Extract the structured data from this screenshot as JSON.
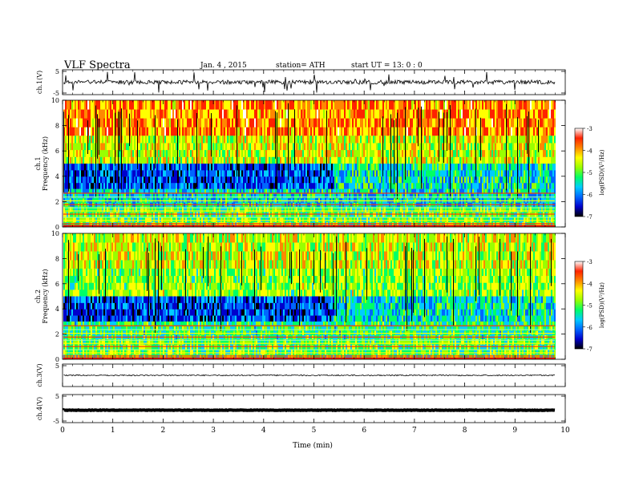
{
  "header": {
    "title": "VLF  Spectra",
    "date": "Jan. 4  , 2015",
    "station": "station= ATH",
    "start_ut": "start  UT  =   13: 0  : 0"
  },
  "colors": {
    "background": "#ffffff",
    "axis": "#000000",
    "colormap": [
      "#000000",
      "#0000cc",
      "#0066ff",
      "#00ccff",
      "#00ff66",
      "#99ff00",
      "#ffff00",
      "#ff8800",
      "#ff2200",
      "#ffffff"
    ]
  },
  "chart_data": [
    {
      "type": "line",
      "id": "ch1",
      "ylabel": "ch.1(V)",
      "ylim": [
        -5,
        5
      ],
      "yticks": [
        "5",
        "-5"
      ],
      "xlim": [
        0,
        10
      ],
      "description_values": {
        "baseline": 0,
        "spike_range": [
          -5,
          5
        ]
      }
    },
    {
      "type": "heatmap",
      "id": "spec1",
      "ylabel": "ch.1\nFrequency  (kHz)",
      "ylabel_lines": [
        "ch.1",
        "Frequency  (kHz)"
      ],
      "ylim": [
        0,
        10
      ],
      "yticks": [
        "0",
        "2",
        "4",
        "6",
        "8",
        "10"
      ],
      "xlim": [
        0,
        9.8
      ],
      "colorbar": {
        "label": "log(PSD)(V²/Hz)",
        "range": [
          -7,
          -3
        ],
        "ticks": [
          "-3",
          "-4",
          "-5",
          "-6",
          "-7"
        ]
      }
    },
    {
      "type": "heatmap",
      "id": "spec2",
      "ylabel_lines": [
        "ch.2",
        "Frequency  (kHz)"
      ],
      "ylim": [
        0,
        10
      ],
      "yticks": [
        "0",
        "2",
        "4",
        "6",
        "8",
        "10"
      ],
      "xlim": [
        0,
        9.8
      ],
      "colorbar": {
        "label": "log(PSD)(V²/Hz)",
        "range": [
          -7,
          -3
        ],
        "ticks": [
          "-3",
          "-4",
          "-5",
          "-6",
          "-7"
        ]
      }
    },
    {
      "type": "line",
      "id": "ch3",
      "ylabel": "ch.3(V)",
      "ylim": [
        -5,
        5
      ],
      "yticks": [
        "5"
      ],
      "xlim": [
        0,
        10
      ]
    },
    {
      "type": "line",
      "id": "ch4",
      "ylabel": "ch.4(V)",
      "ylim": [
        -5,
        5
      ],
      "yticks": [
        "5",
        "-5"
      ],
      "xlim": [
        0,
        10
      ]
    }
  ],
  "xaxis": {
    "label": "Time  (min)",
    "ticks": [
      "0",
      "1",
      "2",
      "3",
      "4",
      "5",
      "6",
      "7",
      "8",
      "9",
      "10"
    ]
  }
}
